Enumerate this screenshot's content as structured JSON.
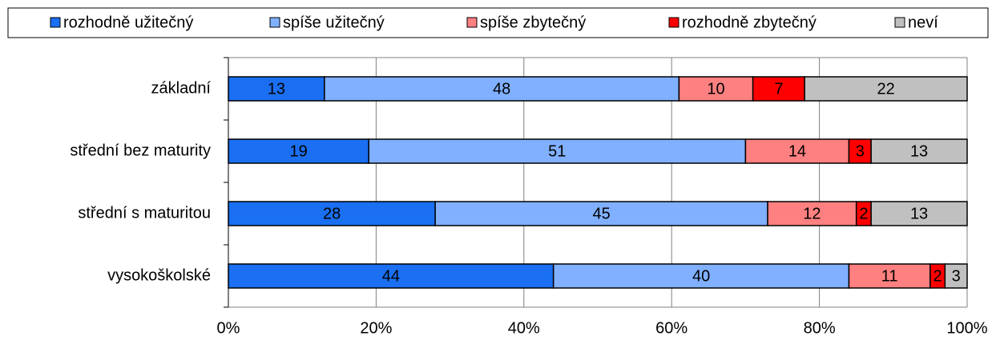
{
  "chart_data": {
    "type": "stacked_bar_horizontal",
    "categories": [
      "základní",
      "střední bez maturity",
      "střední s maturitou",
      "vysokoškolské"
    ],
    "series": [
      {
        "name": "rozhodně užitečný",
        "color": "#1a6ff2",
        "values": [
          13,
          19,
          28,
          44
        ]
      },
      {
        "name": "spíše užitečný",
        "color": "#80b0ff",
        "values": [
          48,
          51,
          45,
          40
        ]
      },
      {
        "name": "spíše zbytečný",
        "color": "#ff8080",
        "values": [
          10,
          14,
          12,
          11
        ]
      },
      {
        "name": "rozhodně zbytečný",
        "color": "#ff0000",
        "values": [
          7,
          3,
          2,
          2
        ]
      },
      {
        "name": "neví",
        "color": "#c0c0c0",
        "values": [
          22,
          13,
          13,
          3
        ]
      }
    ],
    "xlim": [
      0,
      100
    ],
    "xticks": [
      {
        "value": 0,
        "label": "0%"
      },
      {
        "value": 20,
        "label": "20%"
      },
      {
        "value": 40,
        "label": "40%"
      },
      {
        "value": 60,
        "label": "60%"
      },
      {
        "value": 80,
        "label": "80%"
      },
      {
        "value": 100,
        "label": "100%"
      }
    ],
    "grid": true,
    "legend": "top"
  }
}
